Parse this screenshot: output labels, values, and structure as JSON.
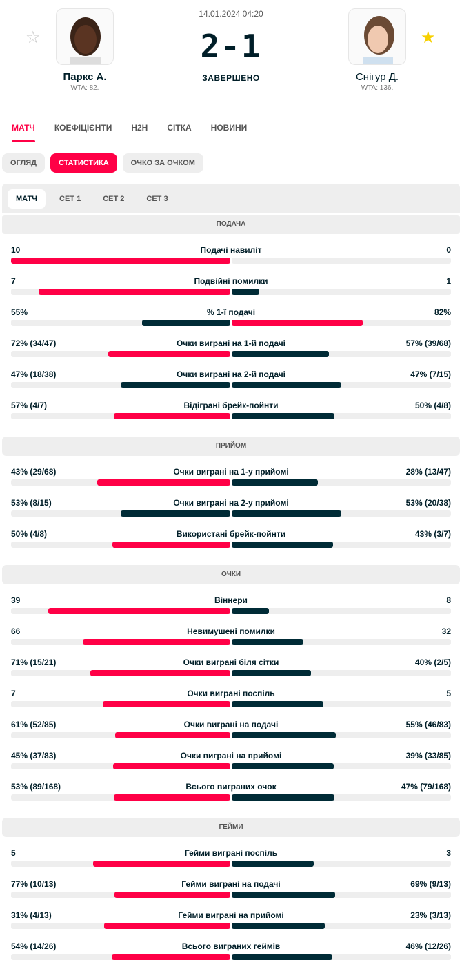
{
  "header": {
    "date": "14.01.2024 04:20",
    "score": "2-1",
    "status": "ЗАВЕРШЕНО",
    "home": {
      "name": "Паркс А.",
      "rank": "WTA: 82.",
      "favorite": false
    },
    "away": {
      "name": "Снігур Д.",
      "rank": "WTA: 136.",
      "favorite": true
    }
  },
  "tabs": [
    "МАТЧ",
    "КОЕФІЦІЄНТИ",
    "H2H",
    "СІТКА",
    "НОВИНИ"
  ],
  "pills": [
    "ОГЛЯД",
    "СТАТИСТИКА",
    "ОЧКО ЗА ОЧКОМ"
  ],
  "subtabs": [
    "МАТЧ",
    "СЕТ 1",
    "СЕТ 2",
    "СЕТ 3"
  ],
  "colors": {
    "accent": "#ff0046",
    "dark": "#002b36",
    "track": "#eeeeee"
  },
  "sections": [
    {
      "title": "ПОДАЧА",
      "rows": [
        {
          "label": "Подачі навиліт",
          "home": "10",
          "away": "0",
          "hv": 10,
          "av": 0
        },
        {
          "label": "Подвійні помилки",
          "home": "7",
          "away": "1",
          "hv": 7,
          "av": 1
        },
        {
          "label": "% 1-ї подачі",
          "home": "55%",
          "away": "82%",
          "hv": 55,
          "av": 82
        },
        {
          "label": "Очки виграні на 1-й подачі",
          "home": "72% (34/47)",
          "away": "57% (39/68)",
          "hv": 72,
          "av": 57
        },
        {
          "label": "Очки виграні на 2-й подачі",
          "home": "47% (18/38)",
          "away": "47% (7/15)",
          "hv": 47,
          "av": 47
        },
        {
          "label": "Відіграні брейк-пойнти",
          "home": "57% (4/7)",
          "away": "50% (4/8)",
          "hv": 57,
          "av": 50
        }
      ]
    },
    {
      "title": "ПРИЙОМ",
      "rows": [
        {
          "label": "Очки виграні на 1-у прийомі",
          "home": "43% (29/68)",
          "away": "28% (13/47)",
          "hv": 43,
          "av": 28
        },
        {
          "label": "Очки виграні на 2-у прийомі",
          "home": "53% (8/15)",
          "away": "53% (20/38)",
          "hv": 53,
          "av": 53
        },
        {
          "label": "Використані брейк-пойнти",
          "home": "50% (4/8)",
          "away": "43% (3/7)",
          "hv": 50,
          "av": 43
        }
      ]
    },
    {
      "title": "ОЧКИ",
      "rows": [
        {
          "label": "Віннери",
          "home": "39",
          "away": "8",
          "hv": 39,
          "av": 8
        },
        {
          "label": "Невимушені помилки",
          "home": "66",
          "away": "32",
          "hv": 66,
          "av": 32
        },
        {
          "label": "Очки виграні біля сітки",
          "home": "71% (15/21)",
          "away": "40% (2/5)",
          "hv": 71,
          "av": 40
        },
        {
          "label": "Очки виграні поспіль",
          "home": "7",
          "away": "5",
          "hv": 7,
          "av": 5
        },
        {
          "label": "Очки виграні на подачі",
          "home": "61% (52/85)",
          "away": "55% (46/83)",
          "hv": 61,
          "av": 55
        },
        {
          "label": "Очки виграні на прийомі",
          "home": "45% (37/83)",
          "away": "39% (33/85)",
          "hv": 45,
          "av": 39
        },
        {
          "label": "Всього виграних очок",
          "home": "53% (89/168)",
          "away": "47% (79/168)",
          "hv": 53,
          "av": 47
        }
      ]
    },
    {
      "title": "ГЕЙМИ",
      "rows": [
        {
          "label": "Гейми виграні поспіль",
          "home": "5",
          "away": "3",
          "hv": 5,
          "av": 3
        },
        {
          "label": "Гейми виграні на подачі",
          "home": "77% (10/13)",
          "away": "69% (9/13)",
          "hv": 77,
          "av": 69
        },
        {
          "label": "Гейми виграні на прийомі",
          "home": "31% (4/13)",
          "away": "23% (3/13)",
          "hv": 31,
          "av": 23
        },
        {
          "label": "Всього виграних геймів",
          "home": "54% (14/26)",
          "away": "46% (12/26)",
          "hv": 54,
          "av": 46
        }
      ]
    }
  ]
}
